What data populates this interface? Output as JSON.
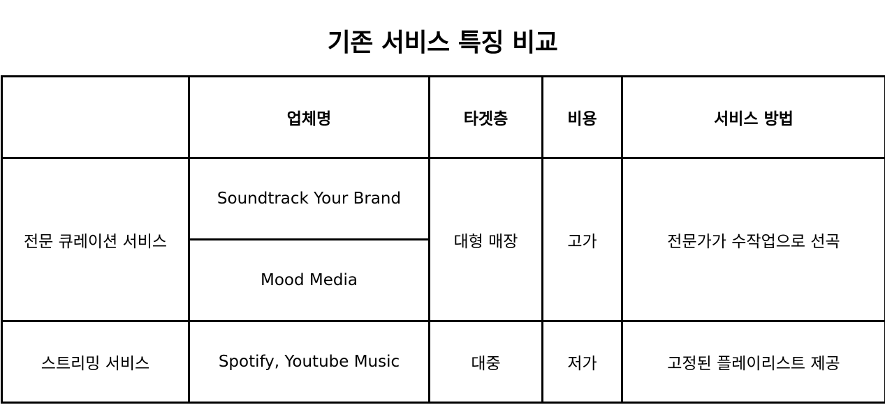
{
  "title": "기존 서비스 특징 비교",
  "table": {
    "headers": [
      "",
      "업체명",
      "타겟층",
      "비용",
      "서비스 방법"
    ],
    "rows": [
      {
        "category": "전문 큐레이션 서비스",
        "companies": [
          "Soundtrack Your Brand",
          "Mood Media"
        ],
        "target": "대형 매장",
        "cost": "고가",
        "method": "전문가가 수작업으로 선곡"
      },
      {
        "category": "스트리밍 서비스",
        "companies": [
          "Spotify, Youtube Music"
        ],
        "target": "대중",
        "cost": "저가",
        "method": "고정된 플레이리스트 제공"
      }
    ]
  }
}
